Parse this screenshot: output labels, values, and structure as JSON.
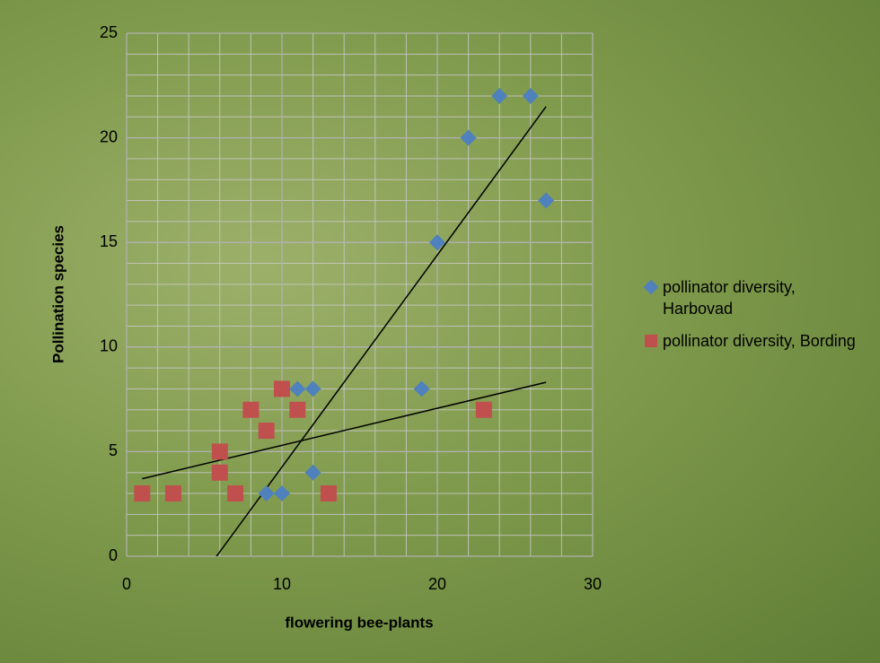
{
  "chart_data": {
    "type": "scatter",
    "x_label": "flowering bee-plants",
    "y_label": "Pollination species",
    "xlim": [
      0,
      30
    ],
    "xticks": [
      0,
      10,
      20,
      30
    ],
    "ylim": [
      0,
      25
    ],
    "yticks": [
      0,
      5,
      10,
      15,
      20,
      25
    ],
    "grid": {
      "x_step": 2,
      "y_step": 1
    },
    "legend": "right",
    "series": [
      {
        "name": "pollinator diversity, Harbovad",
        "color": "#4f81bd",
        "marker": "diamond",
        "trendline": "linear",
        "x": [
          9,
          10,
          11,
          12,
          12,
          19,
          20,
          22,
          24,
          26,
          27
        ],
        "values": [
          3,
          3,
          8,
          8,
          4,
          8,
          15,
          20,
          22,
          22,
          17
        ]
      },
      {
        "name": "pollinator diversity, Bording",
        "color": "#c0504d",
        "marker": "square",
        "trendline": "linear",
        "x": [
          1,
          3,
          6,
          6,
          7,
          8,
          9,
          10,
          11,
          13,
          23
        ],
        "values": [
          3,
          3,
          5,
          4,
          3,
          7,
          6,
          8,
          7,
          3,
          7
        ]
      }
    ]
  }
}
